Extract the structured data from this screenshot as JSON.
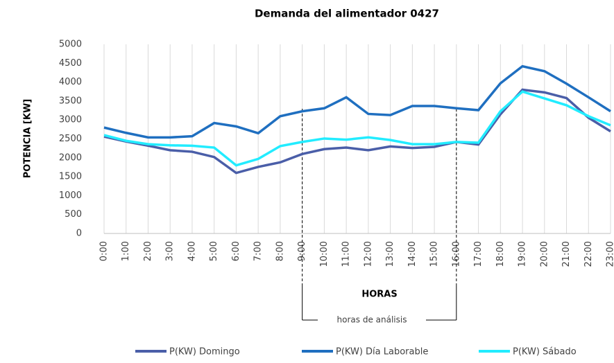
{
  "chart_data": {
    "type": "line",
    "title": "Demanda del alimentador 0427",
    "x_label": "HORAS",
    "y_label": "POTENCIA [KW]",
    "categories": [
      "0:00",
      "1:00",
      "2:00",
      "3:00",
      "4:00",
      "5:00",
      "6:00",
      "7:00",
      "8:00",
      "9:00",
      "10:00",
      "11:00",
      "12:00",
      "13:00",
      "14:00",
      "15:00",
      "16:00",
      "17:00",
      "18:00",
      "19:00",
      "20:00",
      "21:00",
      "22:00",
      "23:00"
    ],
    "series": [
      {
        "name": "P(KW) Domingo",
        "color": "#4a5ea8",
        "values": [
          2560,
          2430,
          2320,
          2200,
          2160,
          2020,
          1600,
          1760,
          1880,
          2100,
          2230,
          2270,
          2200,
          2300,
          2260,
          2290,
          2420,
          2350,
          3150,
          3800,
          3730,
          3580,
          3060,
          2700
        ]
      },
      {
        "name": "P(KW) Día Laborable",
        "color": "#1f6fc0",
        "values": [
          2800,
          2660,
          2540,
          2540,
          2570,
          2920,
          2830,
          2650,
          3100,
          3230,
          3310,
          3600,
          3160,
          3130,
          3370,
          3370,
          3310,
          3260,
          3970,
          4420,
          4290,
          3960,
          3600,
          3230
        ]
      },
      {
        "name": "P(KW) Sábado",
        "color": "#22ecff",
        "values": [
          2600,
          2450,
          2360,
          2330,
          2320,
          2270,
          1800,
          1970,
          2310,
          2420,
          2510,
          2480,
          2540,
          2470,
          2360,
          2360,
          2420,
          2400,
          3230,
          3750,
          3570,
          3390,
          3100,
          2860
        ]
      }
    ],
    "ylim": [
      0,
      5000
    ],
    "yticks": [
      0,
      500,
      1000,
      1500,
      2000,
      2500,
      3000,
      3500,
      4000,
      4500,
      5000
    ],
    "grid": "x",
    "legend": "bottom",
    "annotation": {
      "text": "horas de análisis",
      "from": "9:00",
      "to": "16:00"
    }
  }
}
